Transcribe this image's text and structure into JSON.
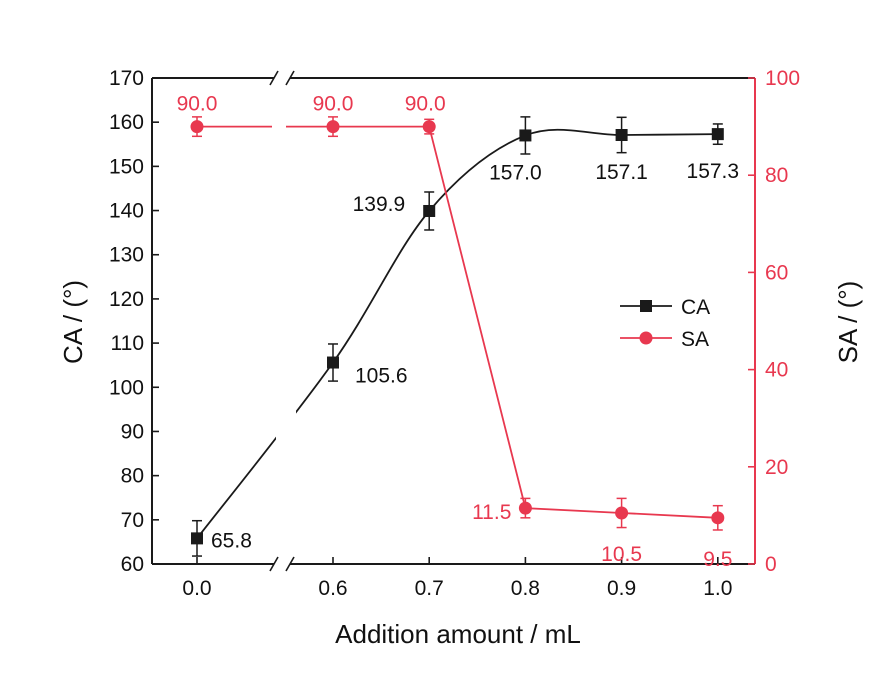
{
  "chart_data": {
    "type": "line",
    "x_categories": [
      "0.0",
      "0.6",
      "0.7",
      "0.8",
      "0.9",
      "1.0"
    ],
    "xlabel": "Addition amount / mL",
    "ylabel_left": "CA / (°)",
    "ylabel_right": "SA / (°)",
    "left_axis": {
      "ylim": [
        60,
        170
      ],
      "ticks": [
        "60",
        "70",
        "80",
        "90",
        "100",
        "110",
        "120",
        "130",
        "140",
        "150",
        "160",
        "170"
      ]
    },
    "right_axis": {
      "ylim": [
        0,
        100
      ],
      "ticks": [
        "0",
        "20",
        "40",
        "60",
        "80",
        "100"
      ]
    },
    "axis_break": "x-axis break between 0.0 and 0.6",
    "legend_placement": "center-right",
    "series": [
      {
        "name": "CA",
        "axis": "left",
        "marker": "square",
        "color": "#1a1a1a",
        "x": [
          0.0,
          0.6,
          0.7,
          0.8,
          0.9,
          1.0
        ],
        "values": [
          65.8,
          105.6,
          139.9,
          157.0,
          157.1,
          157.3
        ],
        "error": [
          4.0,
          4.2,
          4.3,
          4.2,
          4.0,
          2.3
        ],
        "labels": [
          "65.8",
          "105.6",
          "139.9",
          "157.0",
          "157.1",
          "157.3"
        ]
      },
      {
        "name": "SA",
        "axis": "right",
        "marker": "circle",
        "color": "#e8384f",
        "x": [
          0.0,
          0.6,
          0.7,
          0.8,
          0.9,
          1.0
        ],
        "values": [
          90.0,
          90.0,
          90.0,
          11.5,
          10.5,
          9.5
        ],
        "error": [
          2.0,
          2.0,
          1.5,
          2.0,
          3.0,
          2.5
        ],
        "labels": [
          "90.0",
          "90.0",
          "90.0",
          "11.5",
          "10.5",
          "9.5"
        ]
      }
    ]
  }
}
